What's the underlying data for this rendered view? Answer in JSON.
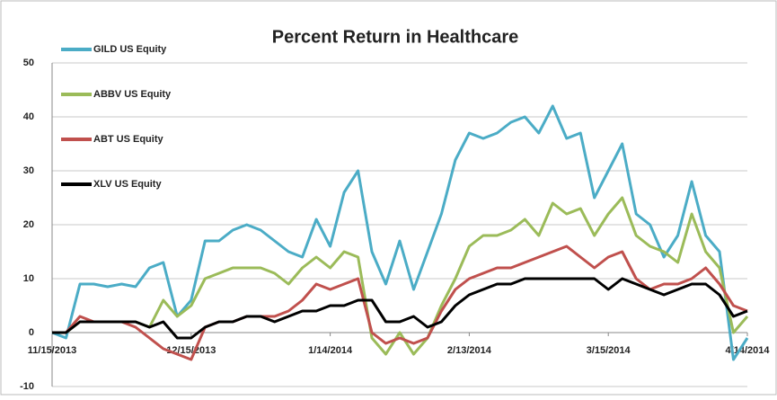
{
  "chart_data": {
    "type": "line",
    "title": "Percent Return in Healthcare",
    "categories": [
      "11/15/2013",
      null,
      null,
      null,
      null,
      null,
      null,
      null,
      null,
      null,
      "12/15/2013",
      null,
      null,
      null,
      null,
      null,
      null,
      null,
      null,
      null,
      "1/14/2014",
      null,
      null,
      null,
      null,
      null,
      null,
      null,
      null,
      null,
      "2/13/2014",
      null,
      null,
      null,
      null,
      null,
      null,
      null,
      null,
      null,
      "3/15/2014",
      null,
      null,
      null,
      null,
      null,
      null,
      null,
      null,
      null,
      "4/14/2014"
    ],
    "series": [
      {
        "name": "GILD US Equity",
        "color": "#4bacc6",
        "values": [
          0,
          -1,
          9,
          9,
          8.5,
          9,
          8.5,
          12,
          13,
          3,
          6,
          17,
          17,
          19,
          20,
          19,
          17,
          15,
          14,
          21,
          16,
          26,
          30,
          15,
          9,
          17,
          8,
          15,
          22,
          32,
          37,
          36,
          37,
          39,
          40,
          37,
          42,
          36,
          37,
          25,
          30,
          35,
          22,
          20,
          14,
          18,
          28,
          18,
          15,
          -5,
          -1
        ]
      },
      {
        "name": "ABBV US Equity",
        "color": "#9bbb59",
        "values": [
          0,
          0,
          2,
          2,
          2,
          2,
          2,
          1,
          6,
          3,
          5,
          10,
          11,
          12,
          12,
          12,
          11,
          9,
          12,
          14,
          12,
          15,
          14,
          -1,
          -4,
          0,
          -4,
          -1,
          5,
          10,
          16,
          18,
          18,
          19,
          21,
          18,
          24,
          22,
          23,
          18,
          22,
          25,
          18,
          16,
          15,
          13,
          22,
          15,
          12,
          0,
          3
        ]
      },
      {
        "name": "ABT US Equity",
        "color": "#c0504d",
        "values": [
          0,
          0,
          3,
          2,
          2,
          2,
          1,
          -1,
          -3,
          -4,
          -5,
          1,
          2,
          2,
          3,
          3,
          3,
          4,
          6,
          9,
          8,
          9,
          10,
          0,
          -2,
          -1,
          -2,
          -1,
          4,
          8,
          10,
          11,
          12,
          12,
          13,
          14,
          15,
          16,
          14,
          12,
          14,
          15,
          10,
          8,
          9,
          9,
          10,
          12,
          9,
          5,
          4
        ]
      },
      {
        "name": "XLV US Equity",
        "color": "#000000",
        "values": [
          0,
          0,
          2,
          2,
          2,
          2,
          2,
          1,
          2,
          -1,
          -1,
          1,
          2,
          2,
          3,
          3,
          2,
          3,
          4,
          4,
          5,
          5,
          6,
          6,
          2,
          2,
          3,
          1,
          2,
          5,
          7,
          8,
          9,
          9,
          10,
          10,
          10,
          10,
          10,
          10,
          8,
          10,
          9,
          8,
          7,
          8,
          9,
          9,
          7,
          3,
          4
        ]
      }
    ],
    "ylim": [
      -10,
      50
    ],
    "yticks": [
      -10,
      0,
      10,
      20,
      30,
      40,
      50
    ],
    "grid": true
  }
}
